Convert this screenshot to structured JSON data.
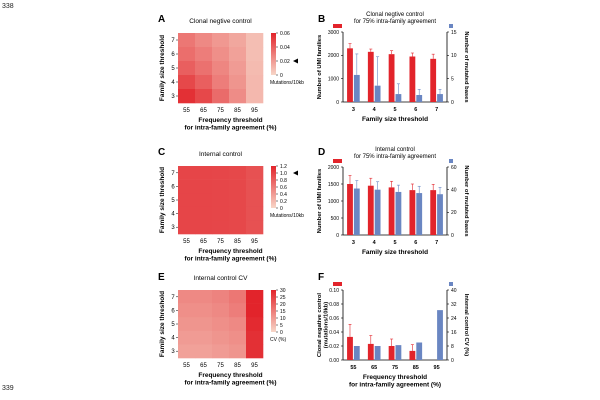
{
  "line_numbers": {
    "top": "338",
    "bottom": "339"
  },
  "panel_labels": [
    "A",
    "B",
    "C",
    "D",
    "E",
    "F"
  ],
  "colors": {
    "red": "#e2242b",
    "blue": "#6a86c2",
    "heat_low": "#f7d6c8",
    "heat_high": "#e2242b"
  },
  "chart_data": [
    {
      "panel": "A",
      "type": "heatmap",
      "title": "Clonal negtive control",
      "xlabel": "Frequency threshold\nfor intra-family agreement (%)",
      "ylabel": "Family size threshold",
      "x": [
        "55",
        "65",
        "75",
        "85",
        "95"
      ],
      "y": [
        "7",
        "6",
        "5",
        "4",
        "3"
      ],
      "values": [
        [
          0.032,
          0.026,
          0.021,
          0.016,
          0.008
        ],
        [
          0.035,
          0.03,
          0.024,
          0.018,
          0.008
        ],
        [
          0.04,
          0.034,
          0.027,
          0.02,
          0.009
        ],
        [
          0.048,
          0.04,
          0.03,
          0.022,
          0.01
        ],
        [
          0.056,
          0.048,
          0.036,
          0.025,
          0.01
        ]
      ],
      "colorbar": {
        "ticks": [
          "0.06",
          "0.04",
          "0.02",
          "0"
        ],
        "min": 0,
        "max": 0.06,
        "label": "Mutations/10kb",
        "marker": 0.02
      }
    },
    {
      "panel": "B",
      "type": "bar",
      "title": "Clonal negtive control\nfor 75% intra-family agreement",
      "xlabel": "Family size threshold",
      "ylabel": "Number of UMI families",
      "y2label": "Number of mutated bases",
      "categories": [
        "3",
        "4",
        "5",
        "6",
        "7"
      ],
      "ylim": [
        0,
        3000
      ],
      "yticks": [
        "0",
        "1000",
        "2000",
        "3000"
      ],
      "y2lim": [
        0,
        15
      ],
      "y2ticks": [
        "0",
        "5",
        "10",
        "15"
      ],
      "series": [
        {
          "values": [
            2300,
            2150,
            2050,
            1950,
            1850
          ],
          "err": [
            200,
            120,
            150,
            150,
            200
          ],
          "axis": "left"
        },
        {
          "values": [
            5.8,
            3.5,
            1.7,
            1.5,
            1.7
          ],
          "err": [
            4.5,
            6.2,
            2.2,
            1.2,
            1.0
          ],
          "axis": "right"
        }
      ]
    },
    {
      "panel": "C",
      "type": "heatmap",
      "title": "Internal control",
      "xlabel": "Frequency threshold\nfor intra-family agreement (%)",
      "ylabel": "Family size threshold",
      "x": [
        "55",
        "65",
        "75",
        "85",
        "95"
      ],
      "y": [
        "7",
        "6",
        "5",
        "4",
        "3"
      ],
      "values": [
        [
          0.98,
          0.98,
          0.97,
          0.96,
          0.9
        ],
        [
          0.98,
          0.98,
          0.97,
          0.96,
          0.9
        ],
        [
          0.98,
          0.98,
          0.97,
          0.96,
          0.9
        ],
        [
          0.98,
          0.98,
          0.97,
          0.96,
          0.9
        ],
        [
          0.98,
          0.98,
          0.97,
          0.96,
          0.9
        ]
      ],
      "colorbar": {
        "ticks": [
          "1.2",
          "1.0",
          "0.8",
          "0.6",
          "0.4",
          "0.2",
          "0"
        ],
        "min": 0,
        "max": 1.2,
        "label": "Mutations/10kb",
        "marker": 1.0
      }
    },
    {
      "panel": "D",
      "type": "bar",
      "title": "Internal control\nfor 75% intra-family agreement",
      "xlabel": "Family size threshold",
      "ylabel": "Number of UMI families",
      "y2label": "Number of mutated bases",
      "categories": [
        "3",
        "4",
        "5",
        "6",
        "7"
      ],
      "ylim": [
        0,
        2000
      ],
      "yticks": [
        "0",
        "500",
        "1000",
        "1500",
        "2000"
      ],
      "y2lim": [
        0,
        60
      ],
      "y2ticks": [
        "0",
        "20",
        "40",
        "60"
      ],
      "series": [
        {
          "values": [
            1500,
            1450,
            1400,
            1320,
            1320
          ],
          "err": [
            250,
            220,
            180,
            180,
            170
          ],
          "axis": "left"
        },
        {
          "values": [
            41,
            40,
            38,
            37,
            36
          ],
          "err": [
            7,
            7,
            6,
            6,
            6
          ],
          "axis": "right"
        }
      ]
    },
    {
      "panel": "E",
      "type": "heatmap",
      "title": "Internal control CV",
      "xlabel": "Frequency threshold\nfor intra-family agreement (%)",
      "ylabel": "Family size threshold",
      "x": [
        "55",
        "65",
        "75",
        "85",
        "95"
      ],
      "y": [
        "7",
        "6",
        "5",
        "4",
        "3"
      ],
      "values": [
        [
          13,
          13,
          14,
          16,
          31
        ],
        [
          12,
          12,
          13,
          15,
          30
        ],
        [
          11,
          11,
          12,
          13,
          29
        ],
        [
          10,
          10,
          11,
          12,
          28
        ],
        [
          9,
          9,
          10,
          11,
          28
        ]
      ],
      "colorbar": {
        "ticks": [
          "30",
          "25",
          "20",
          "15",
          "10",
          "5",
          "0"
        ],
        "min": 0,
        "max": 30,
        "label": "CV (%)"
      }
    },
    {
      "panel": "F",
      "type": "bar",
      "xlabel": "Frequency threshold\nfor intra-family agreement (%)",
      "ylabel": "Clonal negative control\n(mutations/10kb)",
      "y2label": "Internal control CV (%)",
      "categories": [
        "55",
        "65",
        "75",
        "85",
        "95"
      ],
      "ylim": [
        0,
        0.1
      ],
      "yticks": [
        "0.00",
        "0.02",
        "0.04",
        "0.06",
        "0.08",
        "0.10"
      ],
      "y2lim": [
        0,
        40
      ],
      "y2ticks": [
        "0",
        "8",
        "16",
        "24",
        "32",
        "40"
      ],
      "series": [
        {
          "values": [
            0.033,
            0.023,
            0.02,
            0.013,
            0.0
          ],
          "err": [
            0.018,
            0.012,
            0.01,
            0.009,
            0.0
          ],
          "axis": "left"
        },
        {
          "values": [
            8.0,
            8.0,
            8.5,
            10.0,
            28.5
          ],
          "err": [
            0,
            0,
            0,
            0,
            0
          ],
          "axis": "right"
        }
      ]
    }
  ]
}
